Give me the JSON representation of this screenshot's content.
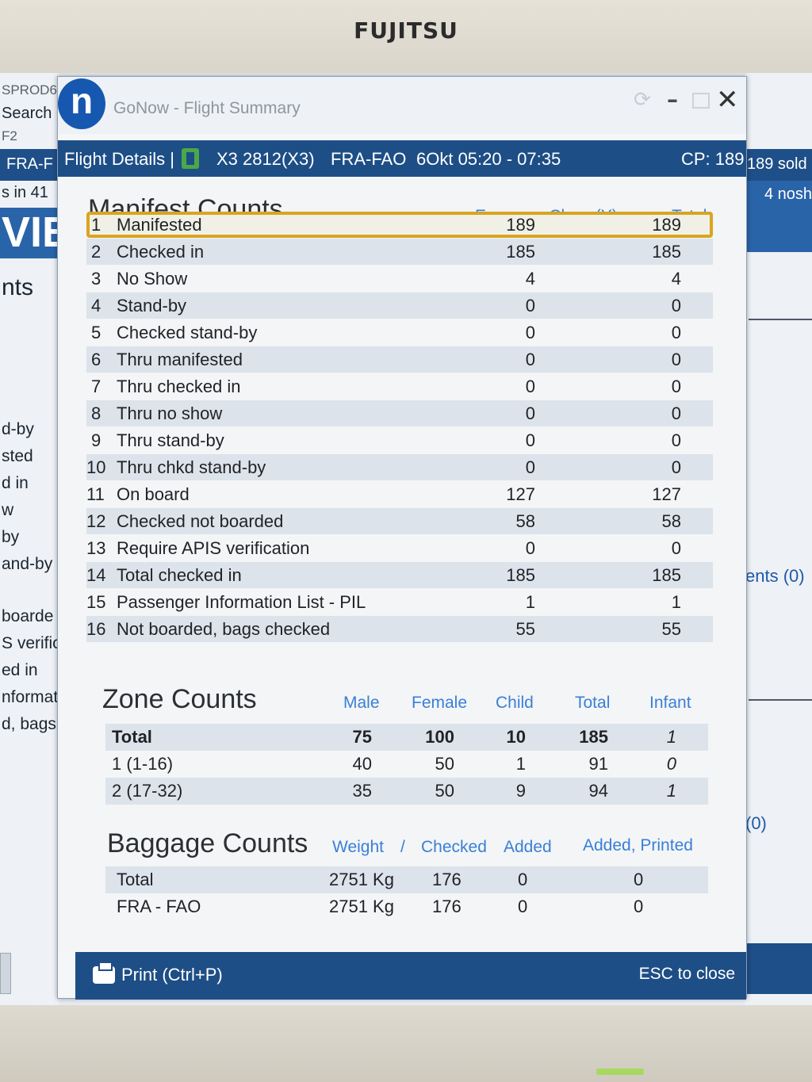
{
  "monitor": {
    "brand": "FUJITSU"
  },
  "background_app": {
    "left_lines": [
      "SPROD6",
      "Search",
      "F2"
    ],
    "left_bar": "FRA-F",
    "left_sub": "s in 41",
    "left_hero": "VIE",
    "left_heading": "nts",
    "left_list": [
      "d-by",
      "sted",
      "d in",
      "w",
      "by",
      "and-by",
      "boarde",
      "S verific",
      "ed in",
      "nformat",
      "d, bags c"
    ],
    "right_bar": "189 sold",
    "right_panel": "4 nosh",
    "right_link1": "ents (0)",
    "right_link2": "(0)"
  },
  "window": {
    "title": "GoNow - Flight Summary",
    "logo_letter": "n",
    "controls": {
      "minimize": "–",
      "close": "✕"
    }
  },
  "flight": {
    "details_label": "Flight Details |",
    "flight_no": "X3 2812(X3)",
    "route": "FRA-FAO",
    "date_time": "6Okt 05:20 - 07:35",
    "cp": "CP: 189"
  },
  "manifest": {
    "title": "Manifest Counts",
    "col_class": "Economy Class (Y)",
    "col_total": "Total",
    "rows": [
      {
        "n": "1",
        "label": "Manifested",
        "y": "189",
        "total": "189"
      },
      {
        "n": "2",
        "label": "Checked in",
        "y": "185",
        "total": "185"
      },
      {
        "n": "3",
        "label": "No Show",
        "y": "4",
        "total": "4"
      },
      {
        "n": "4",
        "label": "Stand-by",
        "y": "0",
        "total": "0"
      },
      {
        "n": "5",
        "label": "Checked stand-by",
        "y": "0",
        "total": "0"
      },
      {
        "n": "6",
        "label": "Thru manifested",
        "y": "0",
        "total": "0"
      },
      {
        "n": "7",
        "label": "Thru checked in",
        "y": "0",
        "total": "0"
      },
      {
        "n": "8",
        "label": "Thru no show",
        "y": "0",
        "total": "0"
      },
      {
        "n": "9",
        "label": "Thru stand-by",
        "y": "0",
        "total": "0"
      },
      {
        "n": "10",
        "label": "Thru chkd stand-by",
        "y": "0",
        "total": "0"
      },
      {
        "n": "11",
        "label": "On board",
        "y": "127",
        "total": "127"
      },
      {
        "n": "12",
        "label": "Checked not boarded",
        "y": "58",
        "total": "58"
      },
      {
        "n": "13",
        "label": "Require APIS verification",
        "y": "0",
        "total": "0"
      },
      {
        "n": "14",
        "label": "Total checked in",
        "y": "185",
        "total": "185"
      },
      {
        "n": "15",
        "label": "Passenger Information List - PIL",
        "y": "1",
        "total": "1"
      },
      {
        "n": "16",
        "label": "Not boarded, bags checked",
        "y": "55",
        "total": "55"
      }
    ]
  },
  "zones": {
    "title": "Zone Counts",
    "headers": {
      "male": "Male",
      "female": "Female",
      "child": "Child",
      "total": "Total",
      "infant": "Infant"
    },
    "rows": [
      {
        "label": "Total",
        "male": "75",
        "female": "100",
        "child": "10",
        "total": "185",
        "infant": "1"
      },
      {
        "label": "1 (1-16)",
        "male": "40",
        "female": "50",
        "child": "1",
        "total": "91",
        "infant": "0"
      },
      {
        "label": "2 (17-32)",
        "male": "35",
        "female": "50",
        "child": "9",
        "total": "94",
        "infant": "1"
      }
    ]
  },
  "baggage": {
    "title": "Baggage Counts",
    "headers": {
      "weight": "Weight",
      "sep": "/",
      "checked": "Checked",
      "added": "Added",
      "added_printed": "Added, Printed"
    },
    "rows": [
      {
        "label": "Total",
        "weight": "2751 Kg",
        "checked": "176",
        "added": "0",
        "added_printed": "0"
      },
      {
        "label": "FRA - FAO",
        "weight": "2751 Kg",
        "checked": "176",
        "added": "0",
        "added_printed": "0"
      }
    ]
  },
  "footer": {
    "print_label": "Print (Ctrl+P)",
    "close_hint": "ESC to close"
  },
  "colors": {
    "header_bg": "#1e4e86",
    "accent_blue": "#3a7fd6",
    "highlight_border": "#d9a520"
  }
}
